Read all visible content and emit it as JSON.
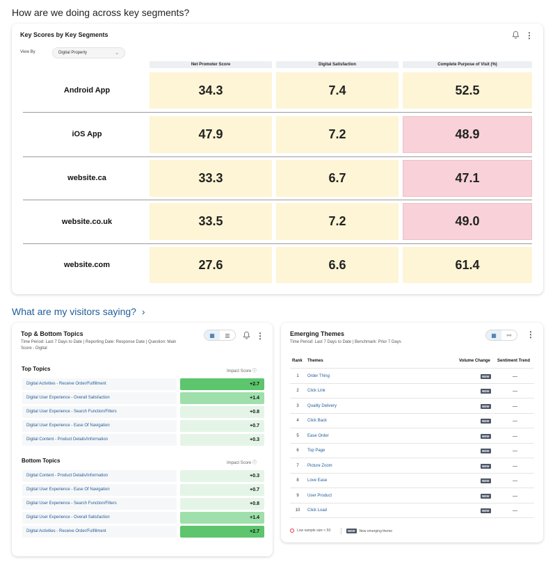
{
  "headings": {
    "segments": "How are we doing across key segments?",
    "visitors": "What are my visitors saying?",
    "visitors_chevron": "›"
  },
  "scores_card": {
    "title": "Key Scores by Key Segments",
    "view_by_label": "View By",
    "view_by_value": "Digital Property",
    "columns": [
      "Net Promoter Score",
      "Digital Satisfaction",
      "Complete Purpose of Visit (%)"
    ],
    "rows": [
      {
        "label": "Android App",
        "values": [
          "34.3",
          "7.4",
          "52.5"
        ],
        "colors": [
          "yellow",
          "yellow",
          "yellow"
        ]
      },
      {
        "label": "iOS App",
        "values": [
          "47.9",
          "7.2",
          "48.9"
        ],
        "colors": [
          "yellow",
          "yellow",
          "pink"
        ]
      },
      {
        "label": "website.ca",
        "values": [
          "33.3",
          "6.7",
          "47.1"
        ],
        "colors": [
          "yellow",
          "yellow",
          "pink"
        ]
      },
      {
        "label": "website.co.uk",
        "values": [
          "33.5",
          "7.2",
          "49.0"
        ],
        "colors": [
          "yellow",
          "yellow",
          "pink"
        ]
      },
      {
        "label": "website.com",
        "values": [
          "27.6",
          "6.6",
          "61.4"
        ],
        "colors": [
          "yellow",
          "yellow",
          "yellow"
        ]
      }
    ]
  },
  "topics_card": {
    "title": "Top & Bottom Topics",
    "subtitle_line1": "Time Period: Last 7 Days to Date | Reporting Date: Response Date | Question: Main",
    "subtitle_line2": "Score - Digital",
    "impact_label": "Impact Score ⓘ",
    "top_title": "Top Topics",
    "bottom_title": "Bottom Topics",
    "top": [
      {
        "name": "Digital Activities - Receive Order/Fulfillment",
        "score": "+2.7",
        "level": "strong"
      },
      {
        "name": "Digital User Experience - Overall Satisfaction",
        "score": "+1.4",
        "level": "mid"
      },
      {
        "name": "Digital User Experience - Search Function/Filters",
        "score": "+0.8",
        "level": "light"
      },
      {
        "name": "Digital User Experience - Ease Of Navigation",
        "score": "+0.7",
        "level": "light"
      },
      {
        "name": "Digital Content - Product Details/Information",
        "score": "+0.3",
        "level": "light"
      }
    ],
    "bottom": [
      {
        "name": "Digital Content - Product Details/Information",
        "score": "+0.3",
        "level": "light"
      },
      {
        "name": "Digital User Experience - Ease Of Navigation",
        "score": "+0.7",
        "level": "light"
      },
      {
        "name": "Digital User Experience - Search Function/Filters",
        "score": "+0.8",
        "level": "light"
      },
      {
        "name": "Digital User Experience - Overall Satisfaction",
        "score": "+1.4",
        "level": "mid"
      },
      {
        "name": "Digital Activities - Receive Order/Fulfillment",
        "score": "+2.7",
        "level": "strong"
      }
    ]
  },
  "emerging_card": {
    "title": "Emerging Themes",
    "subtitle": "Time Period: Last 7 Days to Date | Benchmark: Prior 7 Days",
    "headers": {
      "rank": "Rank",
      "themes": "Themes",
      "volume": "Volume Change",
      "sentiment": "Sentiment Trend"
    },
    "badge": "NEW",
    "dash": "—",
    "rows": [
      {
        "rank": "1",
        "theme": "Order Thing"
      },
      {
        "rank": "2",
        "theme": "Click Link"
      },
      {
        "rank": "3",
        "theme": "Quality Delivery"
      },
      {
        "rank": "4",
        "theme": "Click Back"
      },
      {
        "rank": "5",
        "theme": "Ease Order"
      },
      {
        "rank": "6",
        "theme": "Top Page"
      },
      {
        "rank": "7",
        "theme": "Picture Zoom"
      },
      {
        "rank": "8",
        "theme": "Love Ease"
      },
      {
        "rank": "9",
        "theme": "User Product"
      },
      {
        "rank": "10",
        "theme": "Click Load"
      }
    ],
    "legend_low": "Low sample size < 50",
    "legend_new": "New emerging theme"
  },
  "colors": {
    "yellow": "#fdf5d5",
    "pink": "#f8d2d8",
    "strong_green": "#5cc56d",
    "mid_green": "#9fdfab",
    "light_green": "#e4f5e7",
    "link_blue": "#1f5c99"
  },
  "icons": [
    "bell-icon",
    "kebab-menu-icon",
    "chevron-down-icon",
    "table-view-icon",
    "chart-view-icon",
    "network-view-icon",
    "info-icon",
    "chevron-right-icon"
  ]
}
